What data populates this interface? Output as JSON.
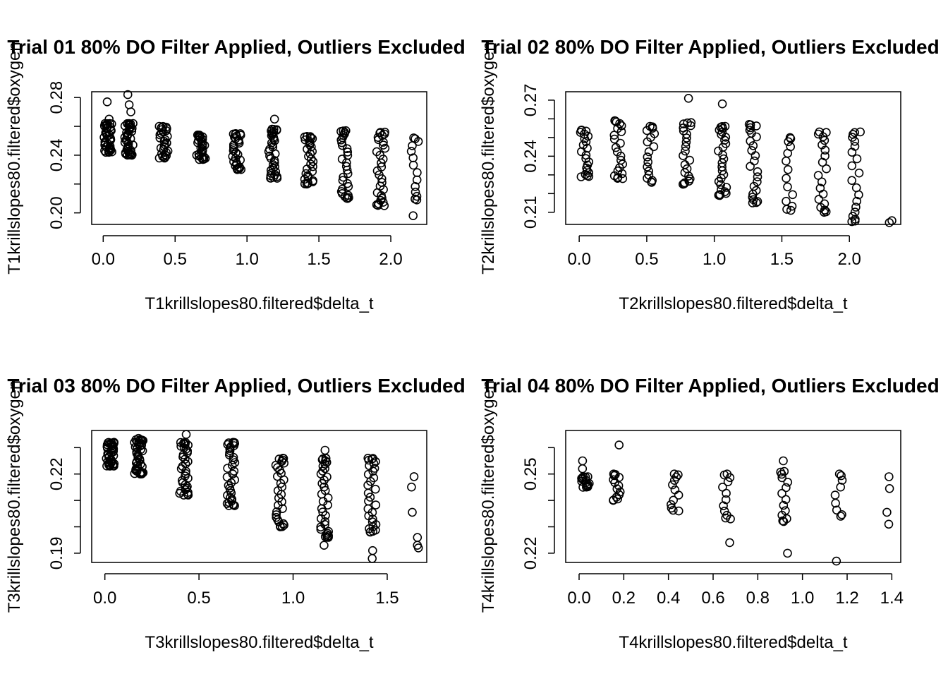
{
  "chart_data": [
    {
      "type": "scatter",
      "title": "Trial 01 80% DO Filter Applied, Outliers Excluded",
      "xlabel": "T1krillslopes80.filtered$delta_t",
      "ylabel": "T1krillslopes80.filtered$oxygen",
      "xlim": [
        -0.08,
        2.25
      ],
      "ylim": [
        0.192,
        0.284
      ],
      "xticks": [
        "0.0",
        "0.5",
        "1.0",
        "1.5",
        "2.0"
      ],
      "xtick_values": [
        0,
        0.5,
        1,
        1.5,
        2
      ],
      "yticks": [
        "0.20",
        "0.24",
        "0.28"
      ],
      "yminor": [
        0.22,
        0.26
      ],
      "ytick_values": [
        0.2,
        0.24,
        0.28
      ],
      "groups": [
        {
          "x": 0.03,
          "y_min": 0.242,
          "y_max": 0.262,
          "n": 40,
          "extra": [
            0.277,
            0.265
          ]
        },
        {
          "x": 0.18,
          "y_min": 0.24,
          "y_max": 0.262,
          "n": 40,
          "extra": [
            0.282,
            0.275,
            0.27
          ]
        },
        {
          "x": 0.42,
          "y_min": 0.238,
          "y_max": 0.26,
          "n": 30,
          "extra": []
        },
        {
          "x": 0.68,
          "y_min": 0.237,
          "y_max": 0.254,
          "n": 30,
          "extra": []
        },
        {
          "x": 0.93,
          "y_min": 0.23,
          "y_max": 0.255,
          "n": 30,
          "extra": []
        },
        {
          "x": 1.18,
          "y_min": 0.224,
          "y_max": 0.258,
          "n": 35,
          "extra": [
            0.265
          ]
        },
        {
          "x": 1.43,
          "y_min": 0.22,
          "y_max": 0.253,
          "n": 30,
          "extra": []
        },
        {
          "x": 1.68,
          "y_min": 0.21,
          "y_max": 0.257,
          "n": 30,
          "extra": []
        },
        {
          "x": 1.93,
          "y_min": 0.205,
          "y_max": 0.256,
          "n": 30,
          "extra": []
        },
        {
          "x": 2.17,
          "y_min": 0.209,
          "y_max": 0.252,
          "n": 14,
          "extra": [
            0.198
          ]
        }
      ]
    },
    {
      "type": "scatter",
      "title": "Trial 02 80% DO Filter Applied, Outliers Excluded",
      "xlabel": "T2krillslopes80.filtered$delta_t",
      "ylabel": "T2krillslopes80.filtered$oxygen",
      "xlim": [
        -0.1,
        2.38
      ],
      "ylim": [
        0.2035,
        0.2745
      ],
      "xticks": [
        "0.0",
        "0.5",
        "1.0",
        "1.5",
        "2.0"
      ],
      "xtick_values": [
        0,
        0.5,
        1,
        1.5,
        2
      ],
      "yticks": [
        "0.21",
        "0.24",
        "0.27"
      ],
      "yminor": [
        0.22,
        0.23,
        0.25,
        0.26
      ],
      "ytick_values": [
        0.21,
        0.24,
        0.27
      ],
      "groups": [
        {
          "x": 0.04,
          "y_min": 0.229,
          "y_max": 0.254,
          "n": 22,
          "extra": []
        },
        {
          "x": 0.29,
          "y_min": 0.228,
          "y_max": 0.259,
          "n": 22,
          "extra": []
        },
        {
          "x": 0.53,
          "y_min": 0.226,
          "y_max": 0.256,
          "n": 18,
          "extra": []
        },
        {
          "x": 0.8,
          "y_min": 0.225,
          "y_max": 0.258,
          "n": 22,
          "extra": [
            0.271
          ]
        },
        {
          "x": 1.06,
          "y_min": 0.219,
          "y_max": 0.256,
          "n": 28,
          "extra": [
            0.268
          ]
        },
        {
          "x": 1.29,
          "y_min": 0.215,
          "y_max": 0.257,
          "n": 24,
          "extra": []
        },
        {
          "x": 1.55,
          "y_min": 0.211,
          "y_max": 0.25,
          "n": 14,
          "extra": []
        },
        {
          "x": 1.8,
          "y_min": 0.21,
          "y_max": 0.253,
          "n": 20,
          "extra": []
        },
        {
          "x": 2.05,
          "y_min": 0.205,
          "y_max": 0.253,
          "n": 20,
          "extra": []
        },
        {
          "x": 2.29,
          "y_min": 0.2045,
          "y_max": 0.2055,
          "n": 2,
          "extra": []
        }
      ]
    },
    {
      "type": "scatter",
      "title": "Trial 03 80% DO Filter Applied, Outliers Excluded",
      "xlabel": "T3krillslopes80.filtered$delta_t",
      "ylabel": "T3krillslopes80.filtered$oxygen",
      "xlim": [
        -0.07,
        1.71
      ],
      "ylim": [
        0.1865,
        0.2365
      ],
      "xticks": [
        "0.0",
        "0.5",
        "1.0",
        "1.5"
      ],
      "xtick_values": [
        0,
        0.5,
        1,
        1.5
      ],
      "yticks": [
        "0.19",
        "0.22"
      ],
      "yminor": [
        0.2,
        0.21,
        0.23
      ],
      "ytick_values": [
        0.19,
        0.22
      ],
      "groups": [
        {
          "x": 0.03,
          "y_min": 0.223,
          "y_max": 0.232,
          "n": 40,
          "extra": []
        },
        {
          "x": 0.18,
          "y_min": 0.22,
          "y_max": 0.233,
          "n": 40,
          "extra": [
            0.2335
          ]
        },
        {
          "x": 0.42,
          "y_min": 0.212,
          "y_max": 0.232,
          "n": 35,
          "extra": [
            0.235
          ]
        },
        {
          "x": 0.67,
          "y_min": 0.208,
          "y_max": 0.232,
          "n": 35,
          "extra": []
        },
        {
          "x": 0.93,
          "y_min": 0.2,
          "y_max": 0.226,
          "n": 30,
          "extra": []
        },
        {
          "x": 1.17,
          "y_min": 0.196,
          "y_max": 0.226,
          "n": 35,
          "extra": [
            0.229,
            0.193
          ]
        },
        {
          "x": 1.42,
          "y_min": 0.198,
          "y_max": 0.226,
          "n": 30,
          "extra": [
            0.191,
            0.188
          ]
        },
        {
          "x": 1.65,
          "y_min": 0.192,
          "y_max": 0.219,
          "n": 5,
          "extra": [
            0.193
          ]
        }
      ]
    },
    {
      "type": "scatter",
      "title": "Trial 04 80% DO Filter Applied, Outliers Excluded",
      "xlabel": "T4krillslopes80.filtered$delta_t",
      "ylabel": "T4krillslopes80.filtered$oxygen",
      "xlim": [
        -0.06,
        1.44
      ],
      "ylim": [
        0.2165,
        0.2665
      ],
      "xticks": [
        "0.0",
        "0.2",
        "0.4",
        "0.6",
        "0.8",
        "1.0",
        "1.2",
        "1.4"
      ],
      "xtick_values": [
        0,
        0.2,
        0.4,
        0.6,
        0.8,
        1.0,
        1.2,
        1.4
      ],
      "yticks": [
        "0.22",
        "0.25"
      ],
      "yminor": [
        0.23,
        0.24,
        0.26
      ],
      "ytick_values": [
        0.22,
        0.25
      ],
      "groups": [
        {
          "x": 0.03,
          "y_min": 0.245,
          "y_max": 0.249,
          "n": 16,
          "extra": [
            0.252,
            0.255
          ]
        },
        {
          "x": 0.17,
          "y_min": 0.24,
          "y_max": 0.25,
          "n": 14,
          "extra": [
            0.261
          ]
        },
        {
          "x": 0.43,
          "y_min": 0.236,
          "y_max": 0.25,
          "n": 12,
          "extra": []
        },
        {
          "x": 0.66,
          "y_min": 0.233,
          "y_max": 0.25,
          "n": 12,
          "extra": [
            0.224
          ]
        },
        {
          "x": 0.92,
          "y_min": 0.232,
          "y_max": 0.251,
          "n": 14,
          "extra": [
            0.255,
            0.22
          ]
        },
        {
          "x": 1.16,
          "y_min": 0.234,
          "y_max": 0.25,
          "n": 9,
          "extra": [
            0.217
          ]
        },
        {
          "x": 1.38,
          "y_min": 0.231,
          "y_max": 0.249,
          "n": 4,
          "extra": []
        }
      ]
    }
  ]
}
